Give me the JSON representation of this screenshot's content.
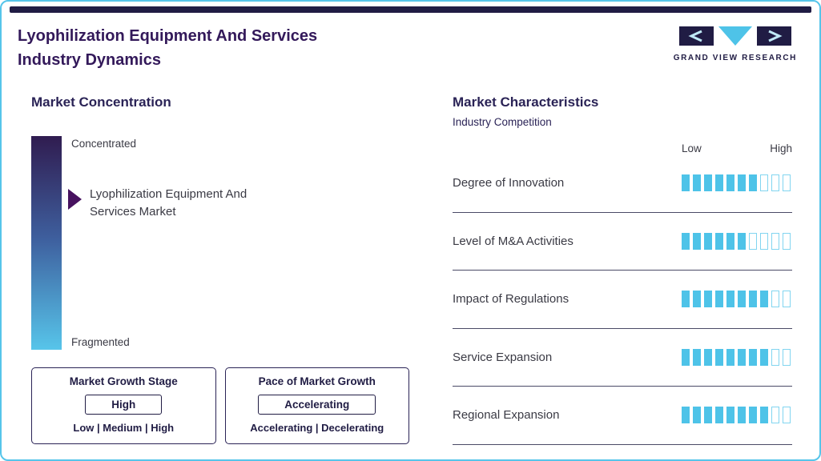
{
  "header": {
    "title_line1": "Lyophilization Equipment And Services",
    "title_line2": "Industry Dynamics",
    "logo_text": "GRAND VIEW RESEARCH"
  },
  "market_concentration": {
    "heading": "Market Concentration",
    "scale_top": "Concentrated",
    "scale_bottom": "Fragmented",
    "marker_label": "Lyophilization Equipment And Services Market",
    "growth_stage": {
      "title": "Market Growth Stage",
      "value": "High",
      "options": "Low | Medium | High"
    },
    "pace_of_growth": {
      "title": "Pace of Market Growth",
      "value": "Accelerating",
      "options": "Accelerating | Decelerating"
    }
  },
  "market_characteristics": {
    "heading": "Market Characteristics",
    "subheading": "Industry Competition",
    "scale_low": "Low",
    "scale_high": "High",
    "rows": [
      {
        "label": "Degree of Innovation",
        "filled": 7,
        "total": 10
      },
      {
        "label": "Level of M&A Activities",
        "filled": 6,
        "total": 10
      },
      {
        "label": "Impact of Regulations",
        "filled": 8,
        "total": 10
      },
      {
        "label": "Service Expansion",
        "filled": 8,
        "total": 10
      },
      {
        "label": "Regional Expansion",
        "filled": 8,
        "total": 10
      }
    ]
  },
  "colors": {
    "accent_blue": "#4ec3e8",
    "dark_navy": "#201c44",
    "title_purple": "#33195a",
    "marker_purple": "#47125f"
  }
}
